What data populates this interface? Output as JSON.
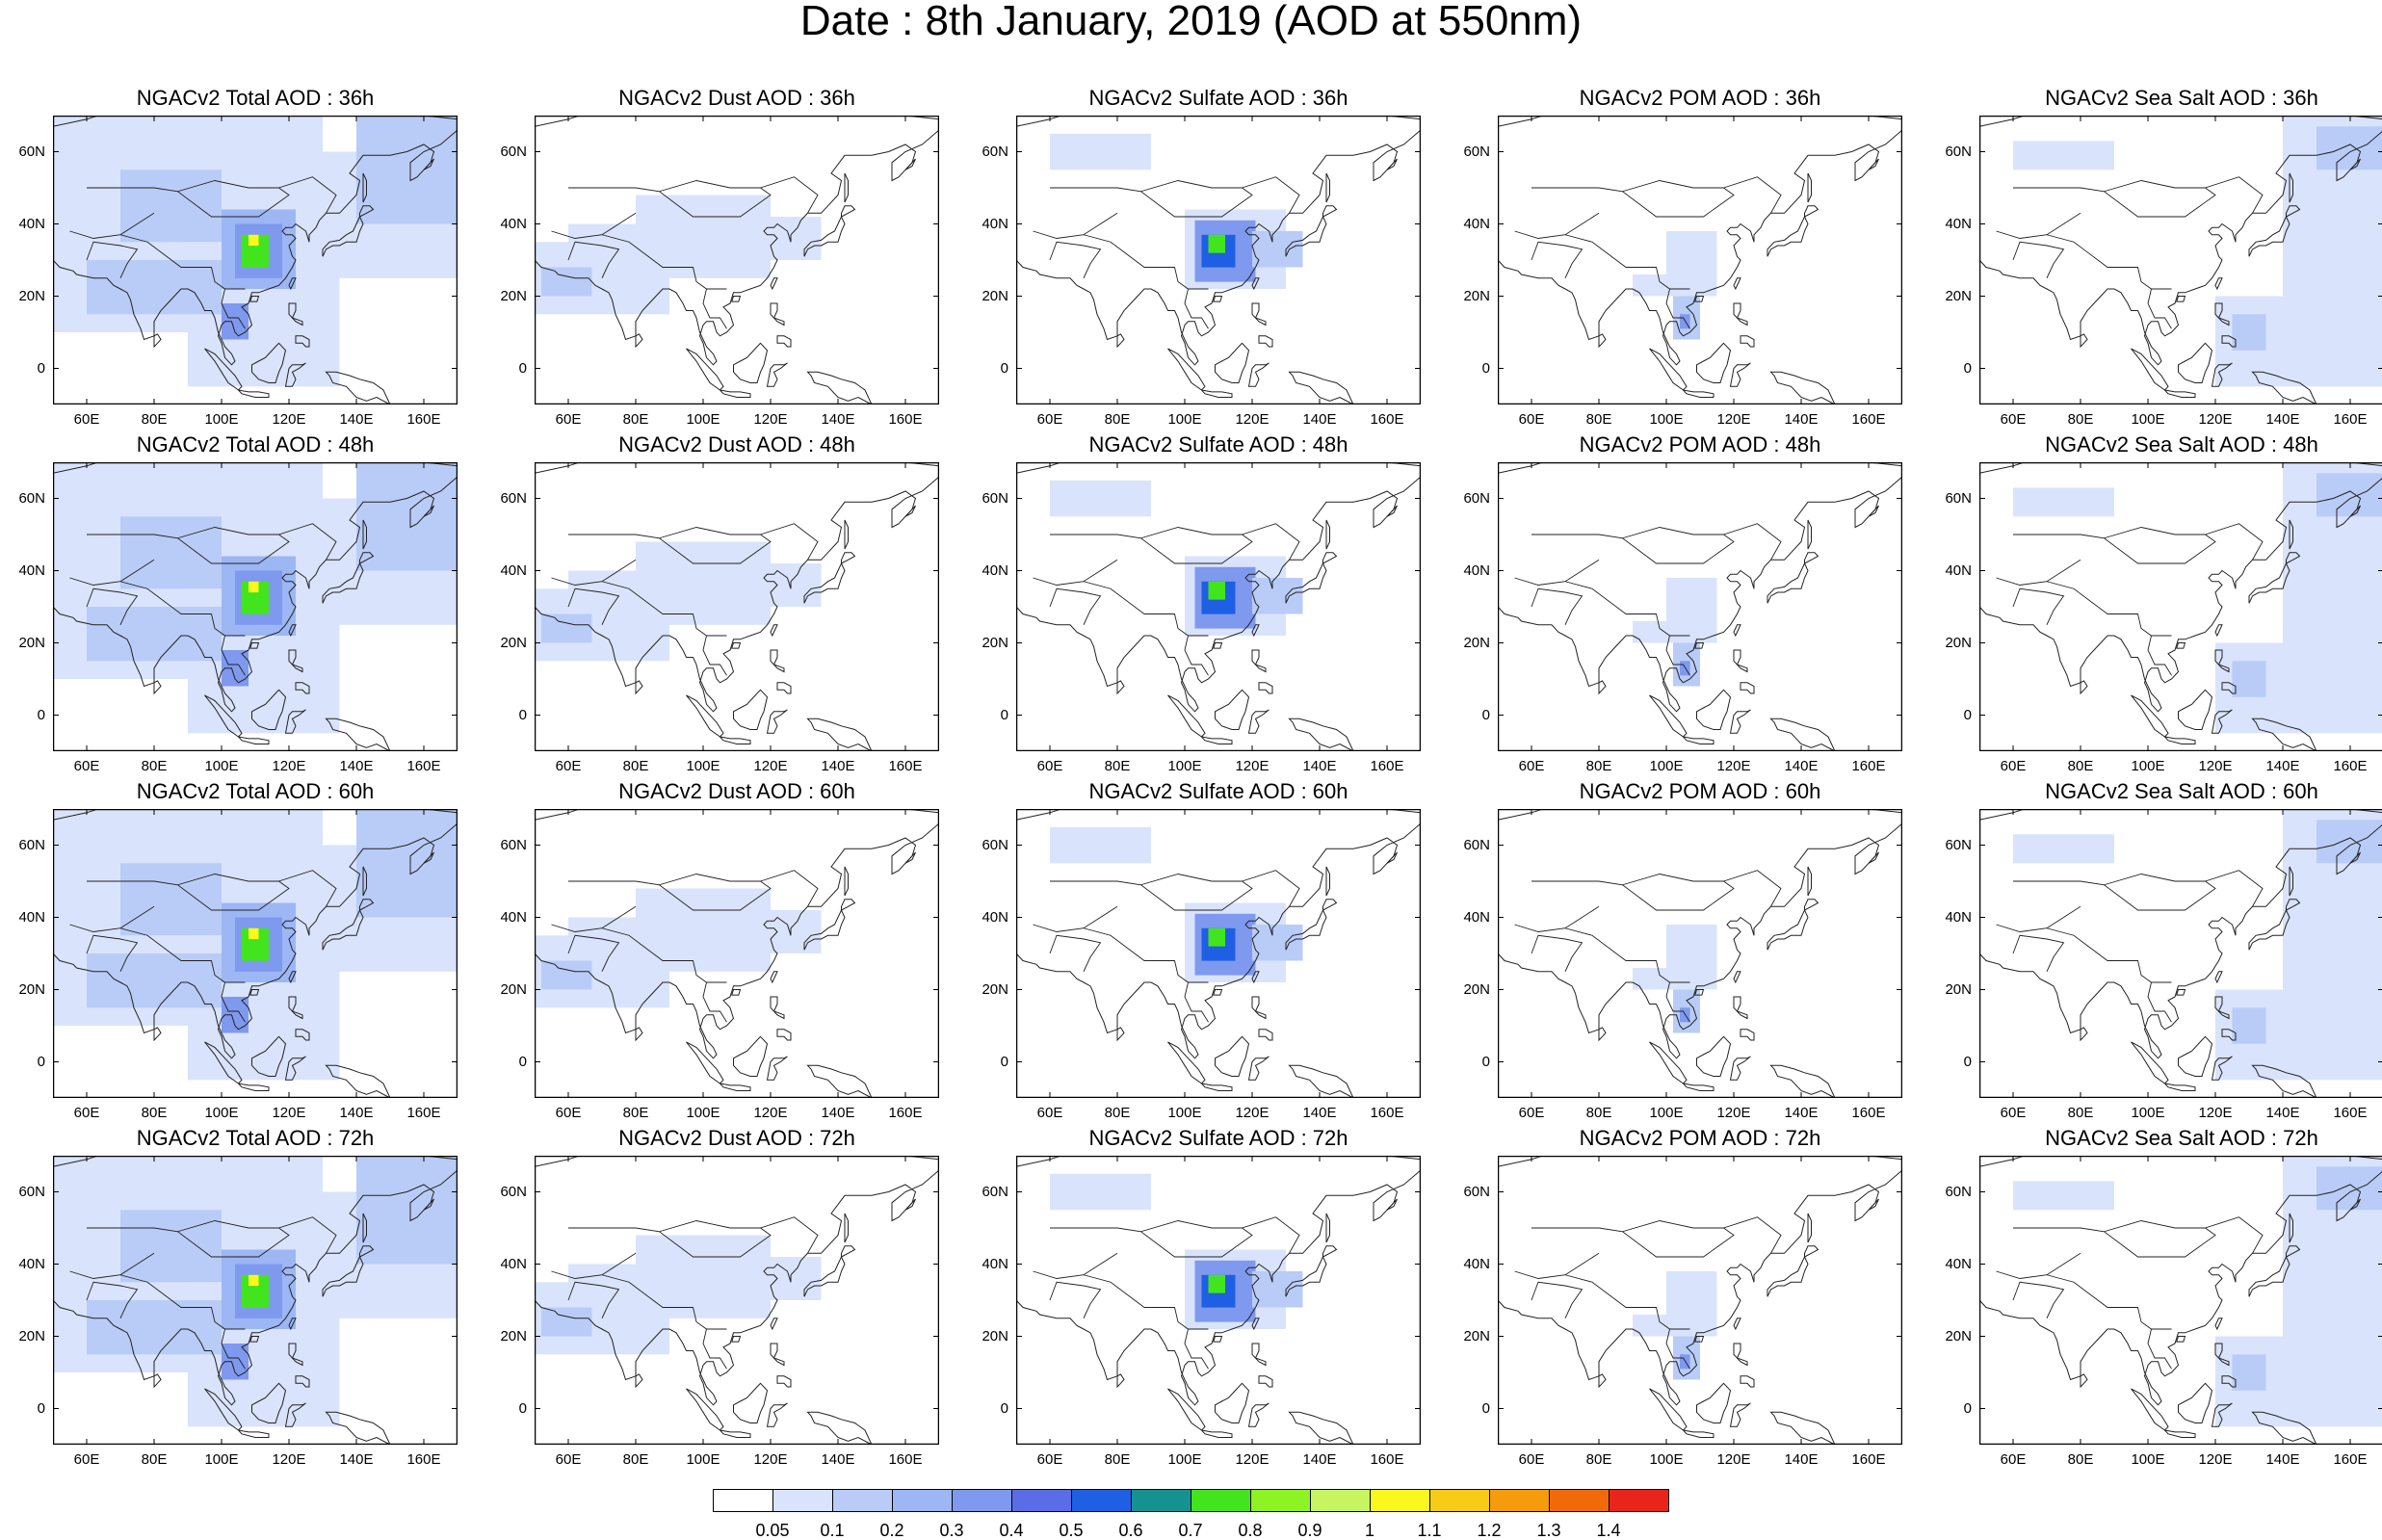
{
  "title": "Date : 8th January, 2019 (AOD at 550nm)",
  "lat_ticks": [
    "60N",
    "40N",
    "20N",
    "0"
  ],
  "lon_ticks": [
    "60E",
    "80E",
    "100E",
    "120E",
    "140E",
    "160E"
  ],
  "panels": [
    [
      "NGACv2 Total AOD : 36h",
      "NGACv2 Dust AOD : 36h",
      "NGACv2 Sulfate AOD : 36h",
      "NGACv2 POM AOD : 36h",
      "NGACv2 Sea Salt AOD : 36h"
    ],
    [
      "NGACv2 Total AOD : 48h",
      "NGACv2 Dust AOD : 48h",
      "NGACv2 Sulfate AOD : 48h",
      "NGACv2 POM AOD : 48h",
      "NGACv2 Sea Salt AOD : 48h"
    ],
    [
      "NGACv2 Total AOD : 60h",
      "NGACv2 Dust AOD : 60h",
      "NGACv2 Sulfate AOD : 60h",
      "NGACv2 POM AOD : 60h",
      "NGACv2 Sea Salt AOD : 60h"
    ],
    [
      "NGACv2 Total AOD : 72h",
      "NGACv2 Dust AOD : 72h",
      "NGACv2 Sulfate AOD : 72h",
      "NGACv2 POM AOD : 72h",
      "NGACv2 Sea Salt  AOD : 72h"
    ]
  ],
  "colorbar": {
    "labels": [
      "0.05",
      "0.1",
      "0.2",
      "0.3",
      "0.4",
      "0.5",
      "0.6",
      "0.7",
      "0.8",
      "0.9",
      "1",
      "1.1",
      "1.2",
      "1.3",
      "1.4"
    ],
    "colors": [
      "#ffffff",
      "#d9e3fc",
      "#b9ccf7",
      "#9db6f4",
      "#7f99ef",
      "#5a6ce6",
      "#1f5fe3",
      "#14928f",
      "#42e51d",
      "#8ef322",
      "#c7f560",
      "#fbf81f",
      "#f7cc17",
      "#f59c0c",
      "#f16a0a",
      "#e9251b"
    ]
  }
}
